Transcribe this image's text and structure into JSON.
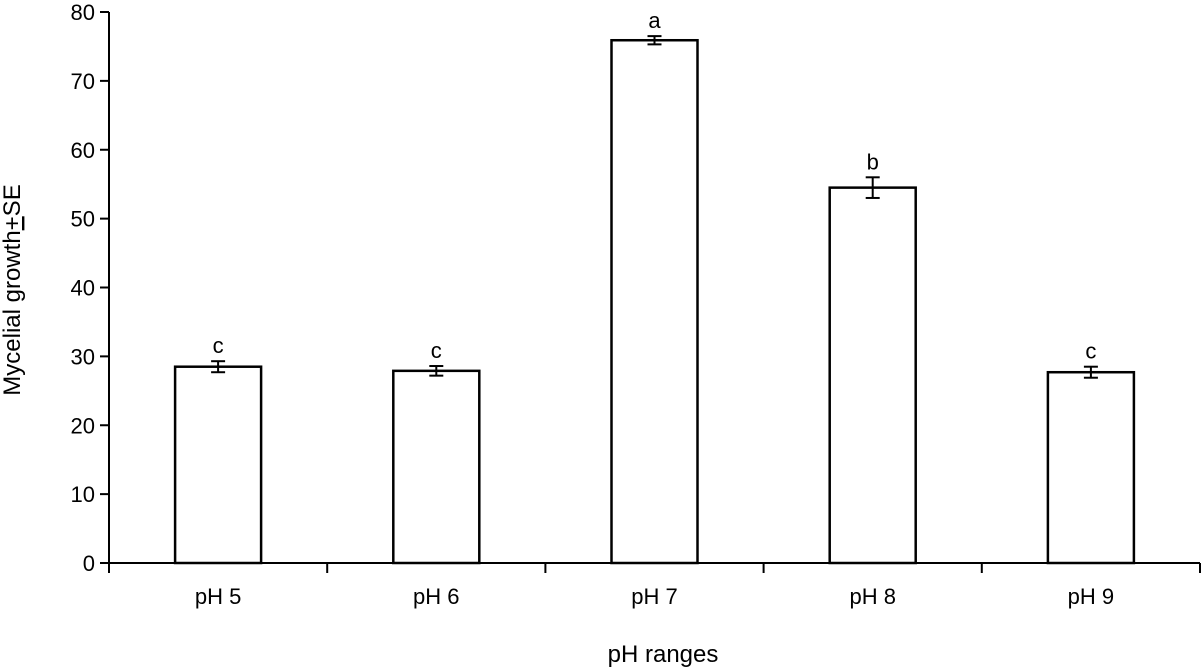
{
  "chart_data": {
    "type": "bar",
    "title": "",
    "xlabel": "pH ranges",
    "ylabel_prefix": "Mycelial growth",
    "ylabel_pm": "+",
    "ylabel_suffix": "SE",
    "ylim": [
      0,
      80
    ],
    "yticks": [
      0,
      10,
      20,
      30,
      40,
      50,
      60,
      70,
      80
    ],
    "grid": false,
    "categories": [
      "pH 5",
      "pH 6",
      "pH 7",
      "pH 8",
      "pH 9"
    ],
    "values": [
      28.5,
      27.9,
      75.9,
      54.5,
      27.7
    ],
    "errors": [
      0.8,
      0.7,
      0.6,
      1.5,
      0.8
    ],
    "significance_labels": [
      "c",
      "c",
      "a",
      "b",
      "c"
    ],
    "bar_fill": "#ffffff",
    "bar_stroke": "#000000"
  }
}
